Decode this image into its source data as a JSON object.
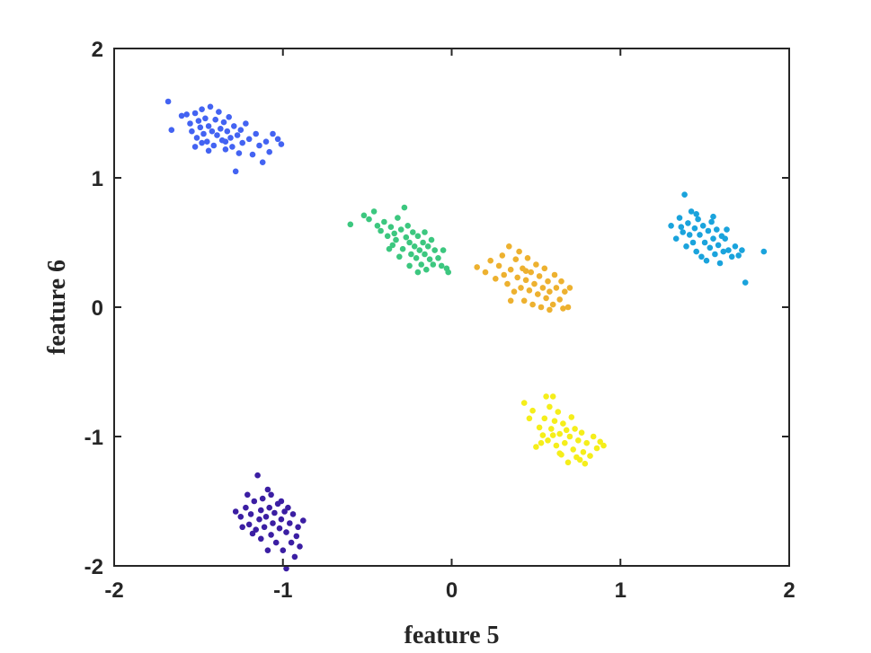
{
  "chart_data": {
    "type": "scatter",
    "title": "",
    "xlabel": "feature 5",
    "ylabel": "feature 6",
    "xlim": [
      -2,
      2
    ],
    "ylim": [
      -2,
      2
    ],
    "x_ticks": [
      -2,
      -1,
      0,
      1,
      2
    ],
    "y_ticks": [
      -2,
      -1,
      0,
      1,
      2
    ],
    "x_tick_labels": [
      "-2",
      "-1",
      "0",
      "1",
      "2"
    ],
    "y_tick_labels": [
      "-2",
      "-1",
      "0",
      "1",
      "2"
    ],
    "grid": false,
    "legend": "none",
    "clusters": [
      {
        "color": "#4363f2",
        "points": [
          [
            -1.68,
            1.59
          ],
          [
            -1.66,
            1.37
          ],
          [
            -1.6,
            1.48
          ],
          [
            -1.57,
            1.49
          ],
          [
            -1.55,
            1.42
          ],
          [
            -1.54,
            1.36
          ],
          [
            -1.52,
            1.5
          ],
          [
            -1.51,
            1.31
          ],
          [
            -1.5,
            1.44
          ],
          [
            -1.49,
            1.39
          ],
          [
            -1.48,
            1.53
          ],
          [
            -1.47,
            1.34
          ],
          [
            -1.46,
            1.46
          ],
          [
            -1.45,
            1.28
          ],
          [
            -1.44,
            1.4
          ],
          [
            -1.43,
            1.55
          ],
          [
            -1.42,
            1.36
          ],
          [
            -1.41,
            1.25
          ],
          [
            -1.4,
            1.45
          ],
          [
            -1.39,
            1.33
          ],
          [
            -1.38,
            1.51
          ],
          [
            -1.37,
            1.38
          ],
          [
            -1.36,
            1.29
          ],
          [
            -1.35,
            1.43
          ],
          [
            -1.34,
            1.22
          ],
          [
            -1.33,
            1.36
          ],
          [
            -1.32,
            1.47
          ],
          [
            -1.31,
            1.31
          ],
          [
            -1.3,
            1.24
          ],
          [
            -1.29,
            1.4
          ],
          [
            -1.28,
            1.05
          ],
          [
            -1.27,
            1.33
          ],
          [
            -1.26,
            1.19
          ],
          [
            -1.25,
            1.37
          ],
          [
            -1.24,
            1.27
          ],
          [
            -1.22,
            1.42
          ],
          [
            -1.2,
            1.3
          ],
          [
            -1.18,
            1.18
          ],
          [
            -1.16,
            1.34
          ],
          [
            -1.14,
            1.25
          ],
          [
            -1.12,
            1.12
          ],
          [
            -1.1,
            1.28
          ],
          [
            -1.08,
            1.2
          ],
          [
            -1.06,
            1.34
          ],
          [
            -1.03,
            1.3
          ],
          [
            -1.01,
            1.26
          ],
          [
            -1.52,
            1.24
          ],
          [
            -1.48,
            1.27
          ],
          [
            -1.44,
            1.21
          ],
          [
            -1.34,
            1.28
          ]
        ]
      },
      {
        "color": "#3b1ea3",
        "points": [
          [
            -1.28,
            -1.58
          ],
          [
            -1.25,
            -1.62
          ],
          [
            -1.22,
            -1.55
          ],
          [
            -1.2,
            -1.68
          ],
          [
            -1.19,
            -1.6
          ],
          [
            -1.17,
            -1.5
          ],
          [
            -1.16,
            -1.72
          ],
          [
            -1.15,
            -1.3
          ],
          [
            -1.14,
            -1.64
          ],
          [
            -1.13,
            -1.57
          ],
          [
            -1.12,
            -1.48
          ],
          [
            -1.11,
            -1.7
          ],
          [
            -1.1,
            -1.62
          ],
          [
            -1.09,
            -1.41
          ],
          [
            -1.08,
            -1.55
          ],
          [
            -1.07,
            -1.76
          ],
          [
            -1.06,
            -1.67
          ],
          [
            -1.05,
            -1.59
          ],
          [
            -1.04,
            -1.82
          ],
          [
            -1.03,
            -1.52
          ],
          [
            -1.02,
            -1.71
          ],
          [
            -1.01,
            -1.64
          ],
          [
            -1.0,
            -1.88
          ],
          [
            -0.99,
            -1.58
          ],
          [
            -0.98,
            -1.74
          ],
          [
            -0.96,
            -1.67
          ],
          [
            -0.95,
            -1.82
          ],
          [
            -0.94,
            -1.6
          ],
          [
            -0.92,
            -1.77
          ],
          [
            -0.91,
            -1.7
          ],
          [
            -0.9,
            -1.85
          ],
          [
            -0.88,
            -1.65
          ],
          [
            -0.98,
            -2.02
          ],
          [
            -0.93,
            -1.93
          ],
          [
            -1.09,
            -1.88
          ],
          [
            -1.13,
            -1.79
          ],
          [
            -1.18,
            -1.75
          ],
          [
            -1.24,
            -1.7
          ],
          [
            -1.21,
            -1.45
          ],
          [
            -1.07,
            -1.45
          ],
          [
            -1.01,
            -1.5
          ],
          [
            -0.97,
            -1.55
          ]
        ]
      },
      {
        "color": "#3cc77f",
        "points": [
          [
            -0.6,
            0.64
          ],
          [
            -0.52,
            0.71
          ],
          [
            -0.49,
            0.68
          ],
          [
            -0.46,
            0.74
          ],
          [
            -0.44,
            0.63
          ],
          [
            -0.42,
            0.59
          ],
          [
            -0.4,
            0.66
          ],
          [
            -0.38,
            0.55
          ],
          [
            -0.36,
            0.62
          ],
          [
            -0.35,
            0.48
          ],
          [
            -0.34,
            0.57
          ],
          [
            -0.33,
            0.52
          ],
          [
            -0.32,
            0.69
          ],
          [
            -0.3,
            0.6
          ],
          [
            -0.29,
            0.45
          ],
          [
            -0.28,
            0.77
          ],
          [
            -0.27,
            0.54
          ],
          [
            -0.26,
            0.63
          ],
          [
            -0.25,
            0.5
          ],
          [
            -0.24,
            0.41
          ],
          [
            -0.23,
            0.58
          ],
          [
            -0.22,
            0.47
          ],
          [
            -0.21,
            0.38
          ],
          [
            -0.2,
            0.55
          ],
          [
            -0.19,
            0.44
          ],
          [
            -0.18,
            0.33
          ],
          [
            -0.17,
            0.5
          ],
          [
            -0.16,
            0.41
          ],
          [
            -0.15,
            0.29
          ],
          [
            -0.14,
            0.47
          ],
          [
            -0.13,
            0.37
          ],
          [
            -0.12,
            0.52
          ],
          [
            -0.11,
            0.33
          ],
          [
            -0.1,
            0.44
          ],
          [
            -0.08,
            0.38
          ],
          [
            -0.06,
            0.32
          ],
          [
            -0.05,
            0.44
          ],
          [
            -0.03,
            0.3
          ],
          [
            -0.02,
            0.27
          ],
          [
            -0.16,
            0.58
          ],
          [
            -0.31,
            0.39
          ],
          [
            -0.37,
            0.45
          ],
          [
            -0.25,
            0.32
          ],
          [
            -0.2,
            0.27
          ]
        ]
      },
      {
        "color": "#edb12f",
        "points": [
          [
            0.15,
            0.31
          ],
          [
            0.2,
            0.27
          ],
          [
            0.23,
            0.36
          ],
          [
            0.26,
            0.22
          ],
          [
            0.28,
            0.32
          ],
          [
            0.3,
            0.4
          ],
          [
            0.31,
            0.25
          ],
          [
            0.33,
            0.18
          ],
          [
            0.34,
            0.47
          ],
          [
            0.35,
            0.29
          ],
          [
            0.37,
            0.12
          ],
          [
            0.38,
            0.37
          ],
          [
            0.39,
            0.23
          ],
          [
            0.4,
            0.43
          ],
          [
            0.41,
            0.15
          ],
          [
            0.42,
            0.3
          ],
          [
            0.43,
            0.05
          ],
          [
            0.44,
            0.21
          ],
          [
            0.45,
            0.38
          ],
          [
            0.46,
            0.13
          ],
          [
            0.47,
            0.27
          ],
          [
            0.48,
            0.02
          ],
          [
            0.49,
            0.18
          ],
          [
            0.5,
            0.33
          ],
          [
            0.51,
            0.1
          ],
          [
            0.52,
            0.24
          ],
          [
            0.53,
            0.0
          ],
          [
            0.54,
            0.15
          ],
          [
            0.55,
            0.3
          ],
          [
            0.56,
            0.07
          ],
          [
            0.57,
            0.2
          ],
          [
            0.58,
            0.12
          ],
          [
            0.6,
            0.02
          ],
          [
            0.61,
            0.25
          ],
          [
            0.62,
            0.15
          ],
          [
            0.64,
            0.06
          ],
          [
            0.65,
            0.2
          ],
          [
            0.66,
            -0.01
          ],
          [
            0.67,
            0.12
          ],
          [
            0.69,
            0.0
          ],
          [
            0.7,
            0.15
          ],
          [
            0.58,
            -0.02
          ],
          [
            0.35,
            0.05
          ],
          [
            0.44,
            0.28
          ]
        ]
      },
      {
        "color": "#f5ee1a",
        "points": [
          [
            0.43,
            -0.74
          ],
          [
            0.46,
            -0.86
          ],
          [
            0.48,
            -0.8
          ],
          [
            0.5,
            -1.08
          ],
          [
            0.52,
            -0.93
          ],
          [
            0.54,
            -0.99
          ],
          [
            0.55,
            -0.86
          ],
          [
            0.56,
            -0.69
          ],
          [
            0.57,
            -1.03
          ],
          [
            0.58,
            -0.77
          ],
          [
            0.59,
            -0.94
          ],
          [
            0.6,
            -0.69
          ],
          [
            0.61,
            -0.88
          ],
          [
            0.62,
            -1.07
          ],
          [
            0.63,
            -0.81
          ],
          [
            0.64,
            -0.98
          ],
          [
            0.65,
            -1.14
          ],
          [
            0.66,
            -0.9
          ],
          [
            0.67,
            -1.05
          ],
          [
            0.68,
            -0.95
          ],
          [
            0.69,
            -1.2
          ],
          [
            0.7,
            -1.0
          ],
          [
            0.71,
            -0.85
          ],
          [
            0.72,
            -1.1
          ],
          [
            0.73,
            -0.94
          ],
          [
            0.74,
            -1.16
          ],
          [
            0.75,
            -1.03
          ],
          [
            0.76,
            -1.18
          ],
          [
            0.77,
            -0.97
          ],
          [
            0.78,
            -1.12
          ],
          [
            0.8,
            -1.05
          ],
          [
            0.82,
            -1.15
          ],
          [
            0.84,
            -1.0
          ],
          [
            0.86,
            -1.09
          ],
          [
            0.88,
            -1.04
          ],
          [
            0.9,
            -1.07
          ],
          [
            0.79,
            -1.21
          ],
          [
            0.64,
            -1.13
          ],
          [
            0.53,
            -1.05
          ],
          [
            0.6,
            -0.99
          ]
        ]
      },
      {
        "color": "#1aa3dc",
        "points": [
          [
            1.3,
            0.63
          ],
          [
            1.33,
            0.53
          ],
          [
            1.35,
            0.69
          ],
          [
            1.37,
            0.58
          ],
          [
            1.38,
            0.87
          ],
          [
            1.39,
            0.47
          ],
          [
            1.4,
            0.65
          ],
          [
            1.41,
            0.56
          ],
          [
            1.42,
            0.74
          ],
          [
            1.43,
            0.5
          ],
          [
            1.44,
            0.61
          ],
          [
            1.45,
            0.43
          ],
          [
            1.46,
            0.68
          ],
          [
            1.47,
            0.56
          ],
          [
            1.48,
            0.39
          ],
          [
            1.49,
            0.63
          ],
          [
            1.5,
            0.5
          ],
          [
            1.51,
            0.36
          ],
          [
            1.52,
            0.59
          ],
          [
            1.53,
            0.46
          ],
          [
            1.54,
            0.66
          ],
          [
            1.55,
            0.53
          ],
          [
            1.56,
            0.41
          ],
          [
            1.57,
            0.6
          ],
          [
            1.58,
            0.48
          ],
          [
            1.59,
            0.34
          ],
          [
            1.6,
            0.55
          ],
          [
            1.61,
            0.43
          ],
          [
            1.62,
            0.53
          ],
          [
            1.64,
            0.44
          ],
          [
            1.66,
            0.39
          ],
          [
            1.68,
            0.47
          ],
          [
            1.7,
            0.4
          ],
          [
            1.72,
            0.44
          ],
          [
            1.74,
            0.19
          ],
          [
            1.85,
            0.43
          ],
          [
            1.55,
            0.7
          ],
          [
            1.45,
            0.72
          ],
          [
            1.36,
            0.62
          ],
          [
            1.63,
            0.6
          ]
        ]
      }
    ]
  }
}
